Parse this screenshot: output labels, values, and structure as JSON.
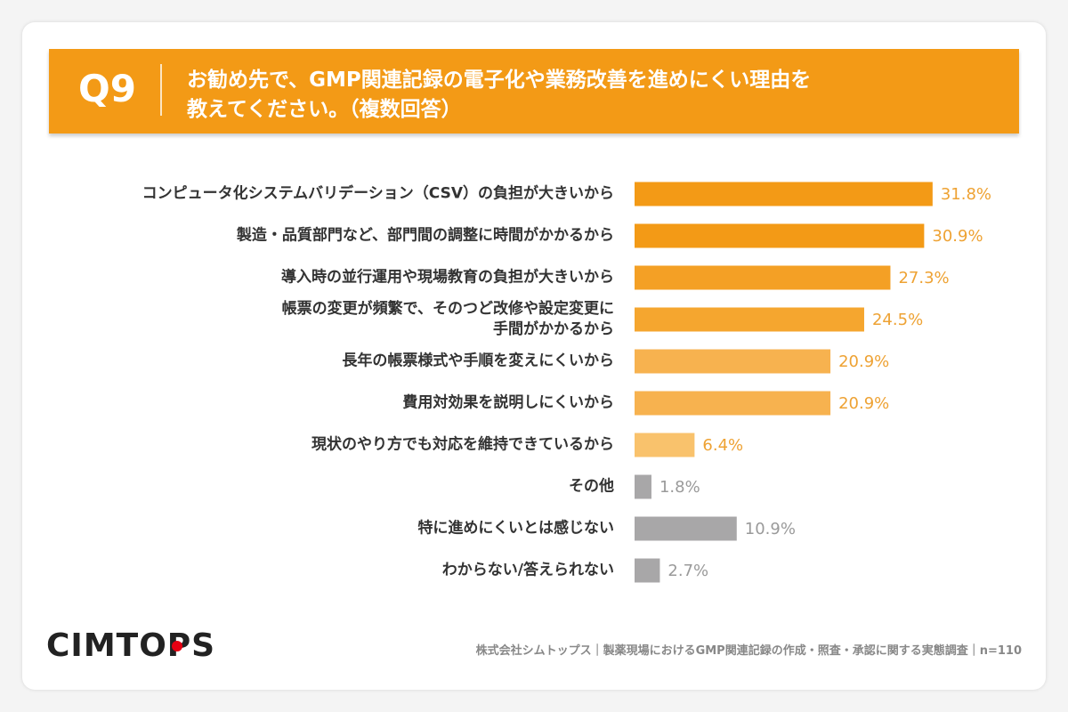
{
  "question_number": "Q9",
  "question_lines": [
    "お勧め先で、GMP関連記録の電子化や業務改善を進めにくい理由を",
    "教えてください。（複数回答）"
  ],
  "chart_data": {
    "type": "bar",
    "orientation": "horizontal",
    "categories": [
      "コンピュータ化システムバリデーション（CSV）の負担が大きいから",
      "製造・品質部門など、部門間の調整に時間がかかるから",
      "導入時の並行運用や現場教育の負担が大きいから",
      "帳票の変更が頻繁で、そのつど改修や設定変更に\n手間がかかるから",
      "長年の帳票様式や手順を変えにくいから",
      "費用対効果を説明しにくいから",
      "現状のやり方でも対応を維持できているから",
      "その他",
      "特に進めにくいとは感じない",
      "わからない/答えられない"
    ],
    "values": [
      31.8,
      30.9,
      27.3,
      24.5,
      20.9,
      20.9,
      6.4,
      1.8,
      10.9,
      2.7
    ],
    "value_labels": [
      "31.8%",
      "30.9%",
      "27.3%",
      "24.5%",
      "20.9%",
      "20.9%",
      "6.4%",
      "1.8%",
      "10.9%",
      "2.7%"
    ],
    "colors": [
      "#f39a16",
      "#f39a16",
      "#f4a025",
      "#f5a62f",
      "#f7b24f",
      "#f7b24f",
      "#f9c26c",
      "#a8a7a8",
      "#a8a7a8",
      "#a8a7a8"
    ],
    "label_colors": [
      "#eea233",
      "#eea233",
      "#eea233",
      "#eea233",
      "#eea233",
      "#eea233",
      "#eea233",
      "#9a9a9a",
      "#9a9a9a",
      "#9a9a9a"
    ]
  },
  "logo": "CIMTOPS",
  "footer": "株式会社シムトップス｜製薬現場におけるGMP関連記録の作成・照査・承認に関する実態調査｜n=110"
}
